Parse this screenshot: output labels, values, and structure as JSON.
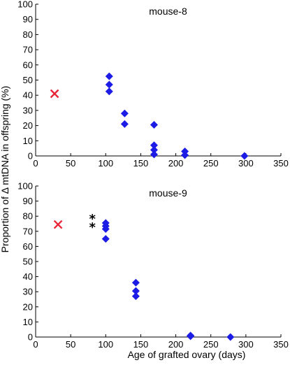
{
  "chart_data": [
    {
      "type": "scatter",
      "title": "mouse-8",
      "xlim": [
        0,
        350
      ],
      "ylim": [
        0,
        100
      ],
      "xticks": [
        "0",
        "50",
        "100",
        "150",
        "200",
        "250",
        "300",
        "350"
      ],
      "yticks": [
        "0",
        "10",
        "20",
        "30",
        "40",
        "50",
        "60",
        "70",
        "80",
        "90",
        "100"
      ],
      "grid": false,
      "series": [
        {
          "marker": "diamond",
          "color": "#1c1ce6",
          "points": [
            [
              105,
              52.5
            ],
            [
              105,
              47
            ],
            [
              105,
              42.5
            ],
            [
              127,
              28
            ],
            [
              127,
              21
            ],
            [
              169,
              20.5
            ],
            [
              169,
              7
            ],
            [
              169,
              4
            ],
            [
              169,
              1
            ],
            [
              213,
              3
            ],
            [
              213,
              0.5
            ],
            [
              298,
              0
            ]
          ]
        },
        {
          "marker": "x",
          "color": "#e8283a",
          "points": [
            [
              27,
              41
            ]
          ]
        }
      ],
      "annotations": []
    },
    {
      "type": "scatter",
      "title": "mouse-9",
      "xlim": [
        0,
        350
      ],
      "ylim": [
        0,
        100
      ],
      "xticks": [
        "0",
        "50",
        "100",
        "150",
        "200",
        "250",
        "300",
        "350"
      ],
      "yticks": [
        "0",
        "10",
        "20",
        "30",
        "40",
        "50",
        "60",
        "70",
        "80",
        "90",
        "100"
      ],
      "grid": false,
      "series": [
        {
          "marker": "diamond",
          "color": "#1c1ce6",
          "points": [
            [
              100,
              75.5
            ],
            [
              100,
              73.5
            ],
            [
              100,
              71.5
            ],
            [
              100,
              65
            ],
            [
              143,
              36
            ],
            [
              143,
              30.5
            ],
            [
              143,
              27
            ],
            [
              221,
              1
            ],
            [
              221,
              0.5
            ],
            [
              278,
              0
            ]
          ]
        },
        {
          "marker": "x",
          "color": "#e8283a",
          "points": [
            [
              32,
              74.5
            ]
          ]
        }
      ],
      "annotations": [
        {
          "text": "*",
          "x": 81,
          "y": 80
        },
        {
          "text": "*",
          "x": 81,
          "y": 74.5
        }
      ]
    }
  ],
  "xlabel": "Age of grafted ovary (days)",
  "ylabel": "Proportion of Δ mtDNA in offspring (%)"
}
